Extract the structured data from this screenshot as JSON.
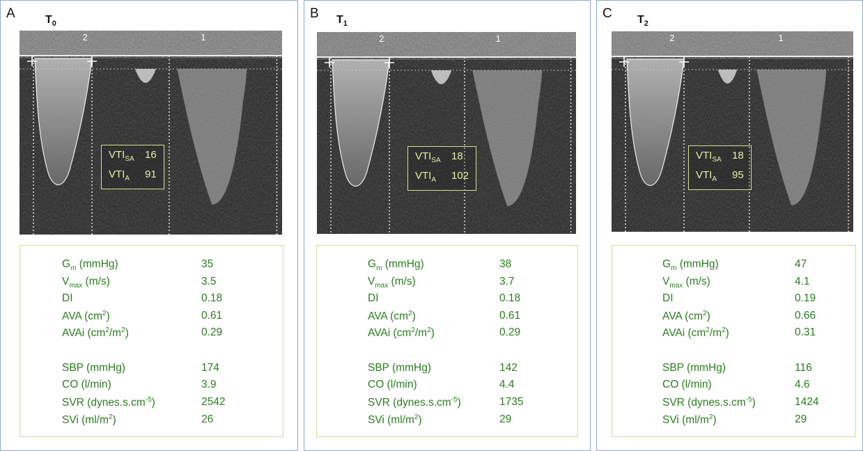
{
  "panels": [
    {
      "letter": "A",
      "time_label": "T",
      "time_sub": "0",
      "vti": {
        "sa_label": "VTI",
        "sa_sub": "SA",
        "sa_value": "16",
        "a_label": "VTI",
        "a_sub": "A",
        "a_value": "91"
      },
      "echo_labels": {
        "beat2": "2",
        "beat1": "1"
      },
      "stats": [
        {
          "label": "G",
          "sub": "m",
          "unit": " (mmHg)",
          "value": "35"
        },
        {
          "label": "V",
          "sub": "max",
          "unit": " (m/s)",
          "value": "3.5"
        },
        {
          "label": "DI",
          "value": "0.18"
        },
        {
          "label": "AVA (cm",
          "sup": "2",
          "after": ")",
          "value": "0.61"
        },
        {
          "label": "AVAi (cm",
          "sup": "2",
          "after": "/m",
          "sup2": "2",
          "after2": ")",
          "value": "0.29"
        },
        {
          "label": "SBP (mmHg)",
          "value": "174"
        },
        {
          "label": "CO (l/min)",
          "value": "3.9"
        },
        {
          "label": "SVR (dynes.s.cm",
          "sup": "-5",
          "after": ")",
          "value": "2542"
        },
        {
          "label": "SVi (ml/m",
          "sup": "2",
          "after": ")",
          "value": "26"
        }
      ]
    },
    {
      "letter": "B",
      "time_label": "T",
      "time_sub": "1",
      "vti": {
        "sa_label": "VTI",
        "sa_sub": "SA",
        "sa_value": "18",
        "a_label": "VTI",
        "a_sub": "A",
        "a_value": "102"
      },
      "echo_labels": {
        "beat2": "2",
        "beat1": "1"
      },
      "stats": [
        {
          "label": "G",
          "sub": "m",
          "unit": " (mmHg)",
          "value": "38"
        },
        {
          "label": "V",
          "sub": "max",
          "unit": " (m/s)",
          "value": "3.7"
        },
        {
          "label": "DI",
          "value": "0.18"
        },
        {
          "label": "AVA (cm",
          "sup": "2",
          "after": ")",
          "value": "0.61"
        },
        {
          "label": "AVAi (cm",
          "sup": "2",
          "after": "/m",
          "sup2": "2",
          "after2": ")",
          "value": "0.29"
        },
        {
          "label": "SBP (mmHg)",
          "value": "142"
        },
        {
          "label": "CO (l/min)",
          "value": "4.4"
        },
        {
          "label": "SVR (dynes.s.cm",
          "sup": "-5",
          "after": ")",
          "value": "1735"
        },
        {
          "label": "SVi (ml/m",
          "sup": "2",
          "after": ")",
          "value": "29"
        }
      ]
    },
    {
      "letter": "C",
      "time_label": "T",
      "time_sub": "2",
      "vti": {
        "sa_label": "VTI",
        "sa_sub": "SA",
        "sa_value": "18",
        "a_label": "VTI",
        "a_sub": "A",
        "a_value": "95"
      },
      "echo_labels": {
        "beat2": "2",
        "beat1": "1"
      },
      "stats": [
        {
          "label": "G",
          "sub": "m",
          "unit": " (mmHg)",
          "value": "47"
        },
        {
          "label": "V",
          "sub": "max",
          "unit": " (m/s)",
          "value": "4.1"
        },
        {
          "label": "DI",
          "value": "0.19"
        },
        {
          "label": "AVA (cm",
          "sup": "2",
          "after": ")",
          "value": "0.66"
        },
        {
          "label": "AVAi (cm",
          "sup": "2",
          "after": "/m",
          "sup2": "2",
          "after2": ")",
          "value": "0.31"
        },
        {
          "label": "SBP (mmHg)",
          "value": "116"
        },
        {
          "label": "CO (l/min)",
          "value": "4.6"
        },
        {
          "label": "SVR (dynes.s.cm",
          "sup": "-5",
          "after": ")",
          "value": "1424"
        },
        {
          "label": "SVi (ml/m",
          "sup": "2",
          "after": ")",
          "value": "29"
        }
      ]
    }
  ],
  "colors": {
    "stats_text": "#2a7d1e",
    "vti_text": "#e6eda5",
    "panel_border": "#8aaad0"
  }
}
